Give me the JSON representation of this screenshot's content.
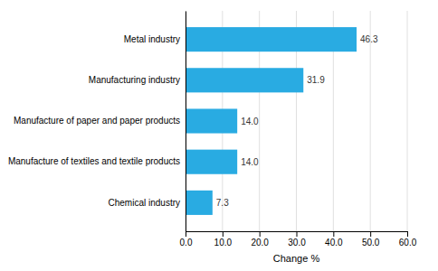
{
  "chart_data": {
    "type": "bar",
    "orientation": "horizontal",
    "x_label": "Change %",
    "categories": [
      "Chemical industry",
      "Manufacture of textiles and textile products",
      "Manufacture of paper and paper products",
      "Manufacturing industry",
      "Metal industry"
    ],
    "values": [
      7.3,
      14.0,
      14.0,
      31.9,
      46.3
    ],
    "value_labels": [
      "7.3",
      "14.0",
      "14.0",
      "31.9",
      "46.3"
    ],
    "data_labels": true,
    "color": "#29abe2",
    "xlim": [
      0,
      60
    ],
    "xticks": [
      {
        "value": 0,
        "label": "0.0"
      },
      {
        "value": 10,
        "label": "10.0"
      },
      {
        "value": 20,
        "label": "20.0"
      },
      {
        "value": 30,
        "label": "30.0"
      },
      {
        "value": 40,
        "label": "40.0"
      },
      {
        "value": 50,
        "label": "50.0"
      },
      {
        "value": 60,
        "label": "60.0"
      }
    ],
    "grid": true
  }
}
